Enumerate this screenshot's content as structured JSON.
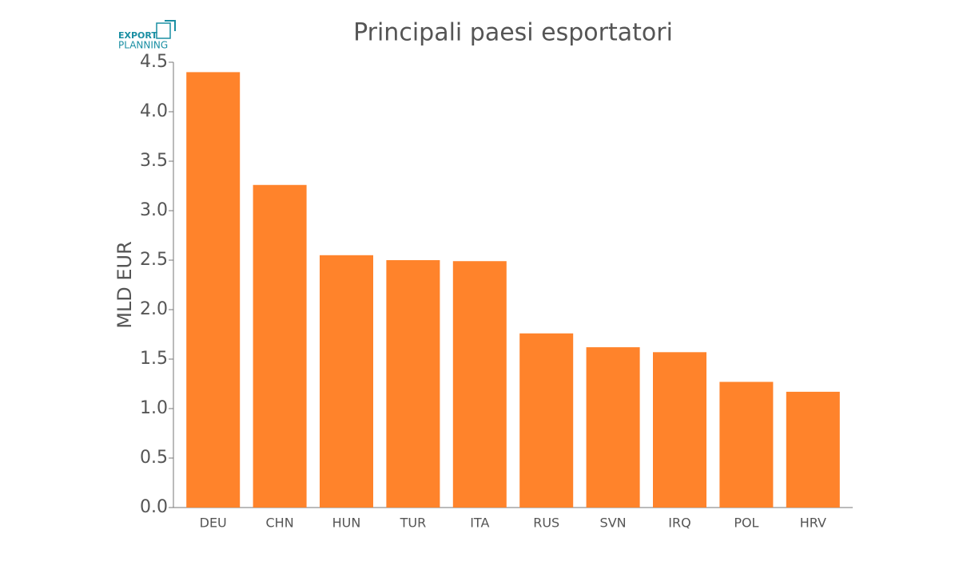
{
  "logo": {
    "line1": "EXPORT",
    "line2": "PLANNING"
  },
  "chart_data": {
    "type": "bar",
    "title": "Principali paesi esportatori",
    "y_label": "MLD EUR",
    "categories": [
      "DEU",
      "CHN",
      "HUN",
      "TUR",
      "ITA",
      "RUS",
      "SVN",
      "IRQ",
      "POL",
      "HRV"
    ],
    "values": [
      4.4,
      3.26,
      2.55,
      2.5,
      2.49,
      1.76,
      1.62,
      1.57,
      1.27,
      1.17
    ],
    "color": "#ff832b",
    "ylim": [
      0,
      4.5
    ],
    "yticks": [
      {
        "value": 0,
        "label": "0.0"
      },
      0.5,
      {
        "value": 1,
        "label": "1.0"
      },
      1.5,
      {
        "value": 2,
        "label": "2.0"
      },
      2.5,
      {
        "value": 3,
        "label": "3.0"
      },
      3.5,
      {
        "value": 4,
        "label": "4.0"
      },
      4.5
    ],
    "grid": false
  }
}
